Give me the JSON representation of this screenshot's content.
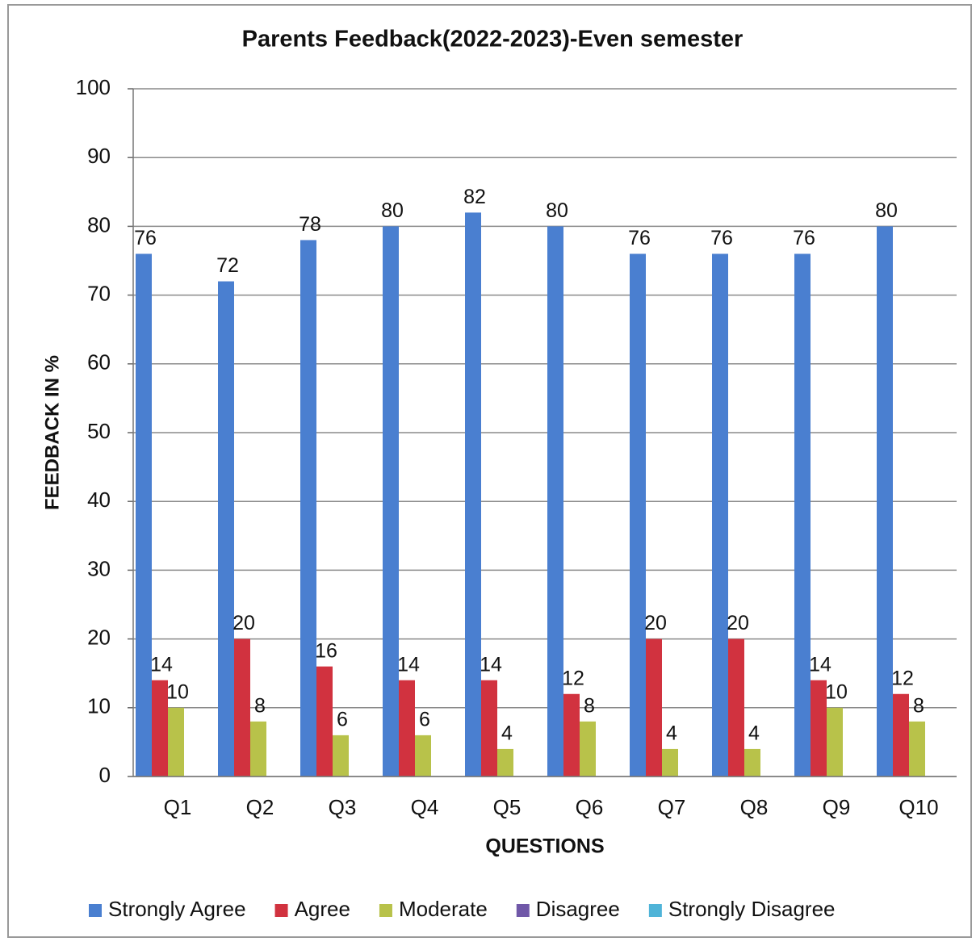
{
  "chart_data": {
    "type": "bar",
    "title": "Parents Feedback(2022-2023)-Even semester",
    "x_label": "QUESTIONS",
    "y_label": "FEEDBACK IN %",
    "categories": [
      "Q1",
      "Q2",
      "Q3",
      "Q4",
      "Q5",
      "Q6",
      "Q7",
      "Q8",
      "Q9",
      "Q10"
    ],
    "series": [
      {
        "name": "Strongly Agree",
        "color": "#4a7fd0",
        "values": [
          76,
          72,
          78,
          80,
          82,
          80,
          76,
          76,
          76,
          80
        ]
      },
      {
        "name": "Agree",
        "color": "#d1323f",
        "values": [
          14,
          20,
          16,
          14,
          14,
          12,
          20,
          20,
          14,
          12
        ]
      },
      {
        "name": "Moderate",
        "color": "#b8c24a",
        "values": [
          10,
          8,
          6,
          6,
          4,
          8,
          4,
          4,
          10,
          8
        ]
      },
      {
        "name": "Disagree",
        "color": "#7058a8",
        "values": [
          0,
          0,
          0,
          0,
          0,
          0,
          0,
          0,
          0,
          0
        ]
      },
      {
        "name": "Strongly Disagree",
        "color": "#4fb4d8",
        "values": [
          0,
          0,
          0,
          0,
          0,
          0,
          0,
          0,
          0,
          0
        ]
      }
    ],
    "ylim": [
      0,
      100
    ],
    "yticks": [
      0,
      10,
      20,
      30,
      40,
      50,
      60,
      70,
      80,
      90,
      100
    ],
    "grid": true,
    "legend": "bottom"
  }
}
